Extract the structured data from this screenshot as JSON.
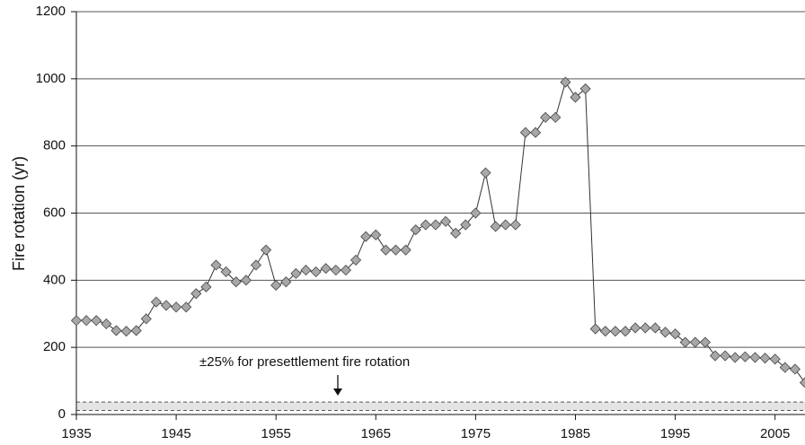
{
  "chart_data": {
    "type": "line",
    "ylabel": "Fire rotation (yr)",
    "annotation": "±25% for presettlement fire rotation",
    "band": [
      12,
      37
    ],
    "x": [
      1935,
      1936,
      1937,
      1938,
      1939,
      1940,
      1941,
      1942,
      1943,
      1944,
      1945,
      1946,
      1947,
      1948,
      1949,
      1950,
      1951,
      1952,
      1953,
      1954,
      1955,
      1956,
      1957,
      1958,
      1959,
      1960,
      1961,
      1962,
      1963,
      1964,
      1965,
      1966,
      1967,
      1968,
      1969,
      1970,
      1971,
      1972,
      1973,
      1974,
      1975,
      1976,
      1977,
      1978,
      1979,
      1980,
      1981,
      1982,
      1983,
      1984,
      1985,
      1986,
      1987,
      1988,
      1989,
      1990,
      1991,
      1992,
      1993,
      1994,
      1995,
      1996,
      1997,
      1998,
      1999,
      2000,
      2001,
      2002,
      2003,
      2004,
      2005,
      2006,
      2007,
      2008
    ],
    "series": [
      {
        "color": "#a8a8a8",
        "values": [
          280,
          280,
          280,
          270,
          250,
          248,
          250,
          285,
          335,
          325,
          320,
          320,
          360,
          380,
          445,
          425,
          395,
          400,
          445,
          490,
          385,
          395,
          420,
          430,
          425,
          435,
          430,
          430,
          460,
          530,
          535,
          490,
          490,
          490,
          550,
          565,
          565,
          575,
          540,
          565,
          600,
          720,
          560,
          565,
          565,
          840,
          840,
          885,
          885,
          990,
          945,
          970,
          255,
          248,
          248,
          248,
          258,
          258,
          258,
          245,
          240,
          215,
          215,
          215,
          175,
          175,
          170,
          172,
          170,
          168,
          165,
          140,
          135,
          95
        ]
      }
    ],
    "xlim": [
      1935,
      2008
    ],
    "xticks": [
      1935,
      1945,
      1955,
      1965,
      1975,
      1985,
      1995,
      2005
    ],
    "ylim": [
      0,
      1200
    ],
    "yticks": [
      0,
      200,
      400,
      600,
      800,
      1000,
      1200
    ],
    "grid": true
  }
}
